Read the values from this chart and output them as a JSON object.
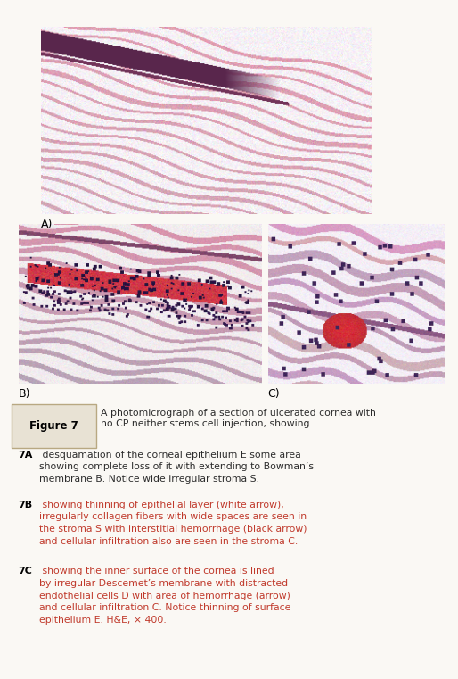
{
  "figure_label": "Figure 7",
  "main_caption_line1": "A photomicrograph of a section of ulcerated cornea with",
  "main_caption_line2": "no CP neither stems cell injection, showing",
  "para_7A_bold": "7A",
  "para_7A_text": " desquamation of the corneal epithelium E some area\nshowing complete loss of it with extending to Bowman’s\nmembrane B. Notice wide irregular stroma S.",
  "para_7B_bold": "7B",
  "para_7B_text": " showing thinning of epithelial layer (white arrow),\nirregularly collagen fibers with wide spaces are seen in\nthe stroma S with interstitial hemorrhage (black arrow)\nand cellular infiltration also are seen in the stroma C.",
  "para_7C_bold": "7C",
  "para_7C_text": " showing the inner surface of the cornea is lined\nby irregular Descemet’s membrane with distracted\nendothelial cells D with area of hemorrhage (arrow)\nand cellular infiltration C. Notice thinning of surface\nepithelium E. H&E, × 400.",
  "background_color": "#faf8f4",
  "border_color": "#b8a882",
  "figure_label_bg": "#e8e2d4",
  "caption_color_normal": "#2c2c2c",
  "caption_color_red": "#c0392b",
  "panel_A_label": "A)",
  "panel_B_label": "B)",
  "panel_C_label": "C)",
  "fig_width": 5.14,
  "fig_height": 7.61,
  "dpi": 100
}
